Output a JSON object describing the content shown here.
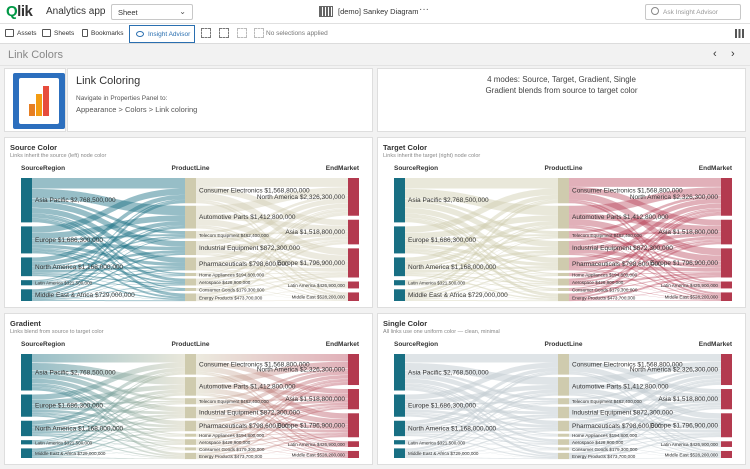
{
  "app": {
    "logo_q": "Q",
    "logo_rest": "lik",
    "title": "Analytics app",
    "sheet_select": "Sheet",
    "doc_title": "[demo] Sankey Diagram",
    "more": "···",
    "search_placeholder": "Ask Insight Advisor"
  },
  "toolbar": {
    "assets": "Assets",
    "sheets": "Sheets",
    "bookmarks": "Bookmarks",
    "insight": "Insight Advisor",
    "no_selections": "No selections applied"
  },
  "sheet": {
    "name": "Link Colors",
    "prev": "‹",
    "next": "›"
  },
  "info": {
    "title": "Link Coloring",
    "subtitle": "Navigate in Properties Panel to:",
    "path": "Appearance > Colors > Link coloring",
    "modes_line1": "4 modes: Source, Target, Gradient, Single",
    "modes_line2": "Gradient blends from source to target color"
  },
  "colors": {
    "source": "#186f83",
    "product": "#cfcbae",
    "end": "#b33a4f",
    "single": "#c5cdd3",
    "kpi": "#2c6fbe"
  },
  "panels": [
    {
      "title": "Source Color",
      "subtitle": "Links inherit the source (left) node color",
      "mode": "source"
    },
    {
      "title": "Target Color",
      "subtitle": "Links inherit the target (right) node color",
      "mode": "target"
    },
    {
      "title": "Gradient",
      "subtitle": "Links blend from source to target color",
      "mode": "gradient"
    },
    {
      "title": "Single Color",
      "subtitle": "All links use one uniform color — clean, minimal",
      "mode": "single"
    }
  ],
  "chart_data": {
    "type": "sankey",
    "column_headers": [
      "SourceRegion",
      "ProductLine",
      "EndMarket"
    ],
    "sources": [
      {
        "label": "Asia Pacific",
        "value": "$2,768,500,000"
      },
      {
        "label": "Europe",
        "value": "$1,686,300,000"
      },
      {
        "label": "North America",
        "value": "$1,168,000,000"
      },
      {
        "label": "Latin America",
        "value": "$321,500,000"
      },
      {
        "label": "Middle East & Africa",
        "value": "$729,000,000"
      }
    ],
    "products": [
      {
        "label": "Consumer Electronics",
        "value": "$1,568,800,000"
      },
      {
        "label": "Automotive Parts",
        "value": "$1,412,800,000"
      },
      {
        "label": "Telecom Equipment",
        "value": "$462,400,000"
      },
      {
        "label": "Industrial Equipment",
        "value": "$872,300,000"
      },
      {
        "label": "Pharmaceuticals",
        "value": "$798,600,000"
      },
      {
        "label": "Home Appliances",
        "value": "$194,800,000"
      },
      {
        "label": "Aerospace",
        "value": "$428,900,000"
      },
      {
        "label": "Consumer Goods",
        "value": "$179,300,000"
      },
      {
        "label": "Energy Products",
        "value": "$473,700,000"
      }
    ],
    "markets": [
      {
        "label": "North America",
        "value": "$2,326,300,000"
      },
      {
        "label": "Asia",
        "value": "$1,518,800,000"
      },
      {
        "label": "Europe",
        "value": "$1,796,900,000"
      },
      {
        "label": "Latin America",
        "value": "$426,900,000"
      },
      {
        "label": "Middle East",
        "value": "$528,200,000"
      }
    ]
  }
}
